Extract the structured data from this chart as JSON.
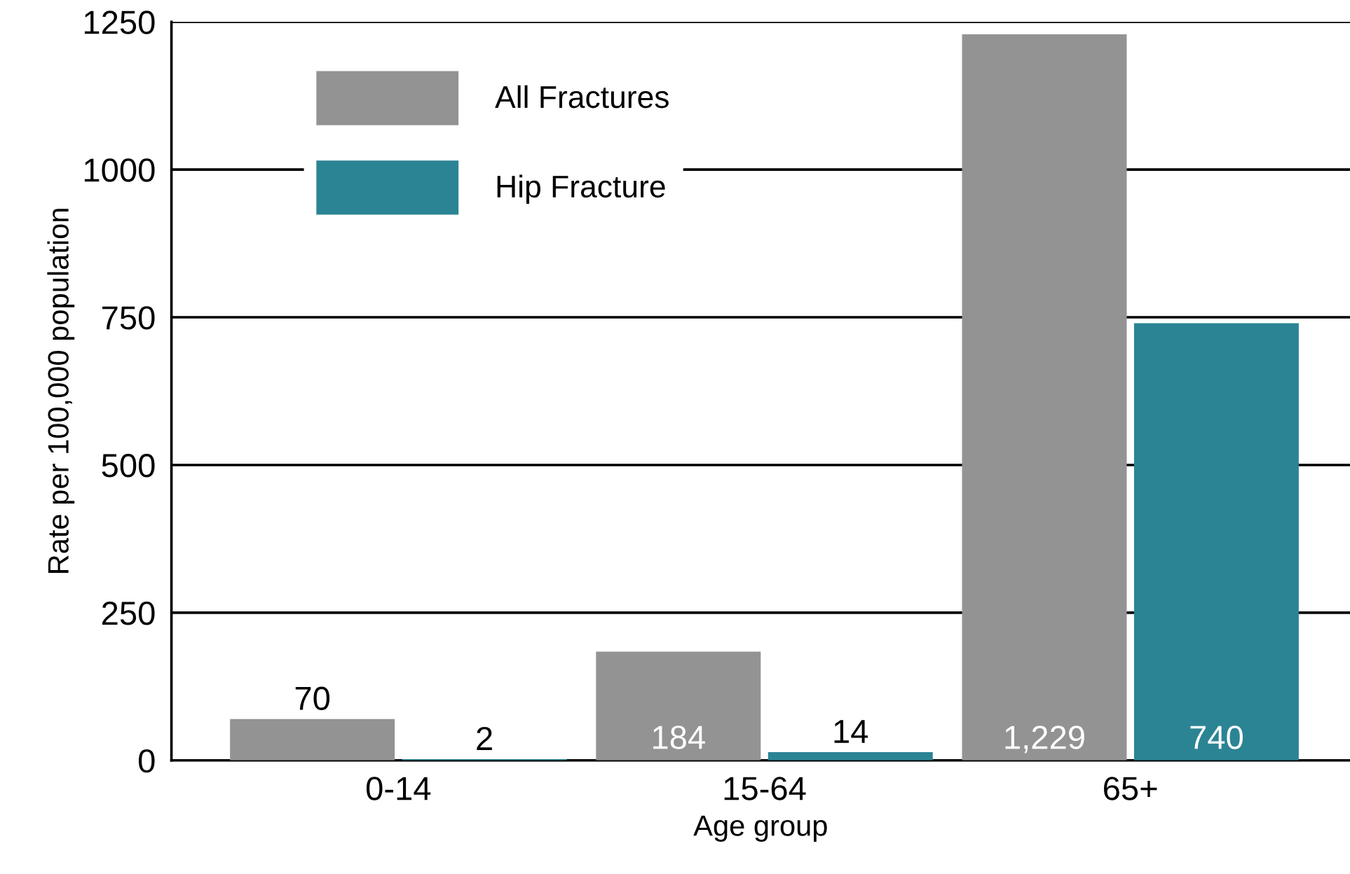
{
  "chart_data": {
    "type": "bar",
    "xlabel": "Age group",
    "ylabel": "Rate per 100,000 population",
    "categories": [
      "0-14",
      "15-64",
      "65+"
    ],
    "series": [
      {
        "name": "All Fractures",
        "color": "#939393",
        "values": [
          70,
          184,
          1229
        ],
        "value_labels": [
          "70",
          "184",
          "1,229"
        ]
      },
      {
        "name": "Hip Fracture",
        "color": "#2b8494",
        "values": [
          2,
          14,
          740
        ],
        "value_labels": [
          "2",
          "14",
          "740"
        ]
      }
    ],
    "ylim": [
      0,
      1250
    ],
    "yticks": [
      0,
      250,
      500,
      750,
      1000,
      1250
    ],
    "grid": "y",
    "legend": "top left"
  }
}
